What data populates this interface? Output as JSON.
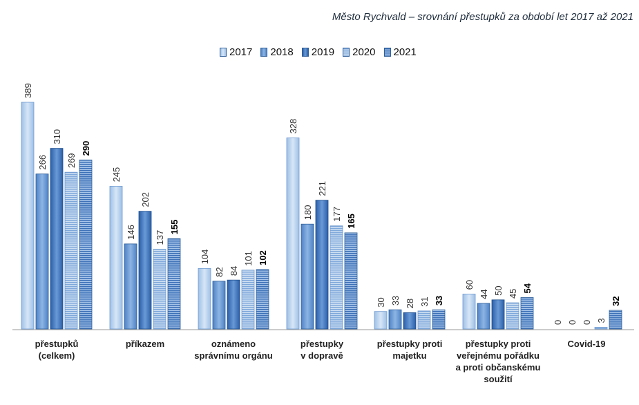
{
  "chart_data": {
    "type": "bar",
    "title": "Město Rychvald – srovnání přestupků za období let 2017 až 2021",
    "categories": [
      [
        "přestupků",
        "(celkem)"
      ],
      [
        "příkazem"
      ],
      [
        "oznámeno",
        "správnímu orgánu"
      ],
      [
        "přestupky",
        "v dopravě"
      ],
      [
        "přestupky proti",
        "majetku"
      ],
      [
        "přestupky proti",
        "veřejnému pořádku",
        "a proti občanskému",
        "soužití"
      ],
      [
        "Covid-19"
      ]
    ],
    "series": [
      {
        "name": "2017",
        "values": [
          389,
          245,
          104,
          328,
          30,
          60,
          0
        ],
        "color": "#bcd4ee",
        "pattern": "solid-light"
      },
      {
        "name": "2018",
        "values": [
          266,
          146,
          82,
          180,
          33,
          44,
          0
        ],
        "color": "#6f9fd6",
        "pattern": "solid-mid"
      },
      {
        "name": "2019",
        "values": [
          310,
          202,
          84,
          221,
          28,
          50,
          0
        ],
        "color": "#3f78c0",
        "pattern": "solid-dark"
      },
      {
        "name": "2020",
        "values": [
          269,
          137,
          101,
          177,
          31,
          45,
          3
        ],
        "color": "#8fb4e0",
        "pattern": "stripes-light"
      },
      {
        "name": "2021",
        "values": [
          290,
          155,
          102,
          165,
          33,
          54,
          32
        ],
        "color": "#5f8cc8",
        "pattern": "stripes-dark"
      }
    ],
    "ylim": [
      0,
      400
    ],
    "grid": false,
    "legend_position": "top-center",
    "bold_labels_series": "2021"
  }
}
